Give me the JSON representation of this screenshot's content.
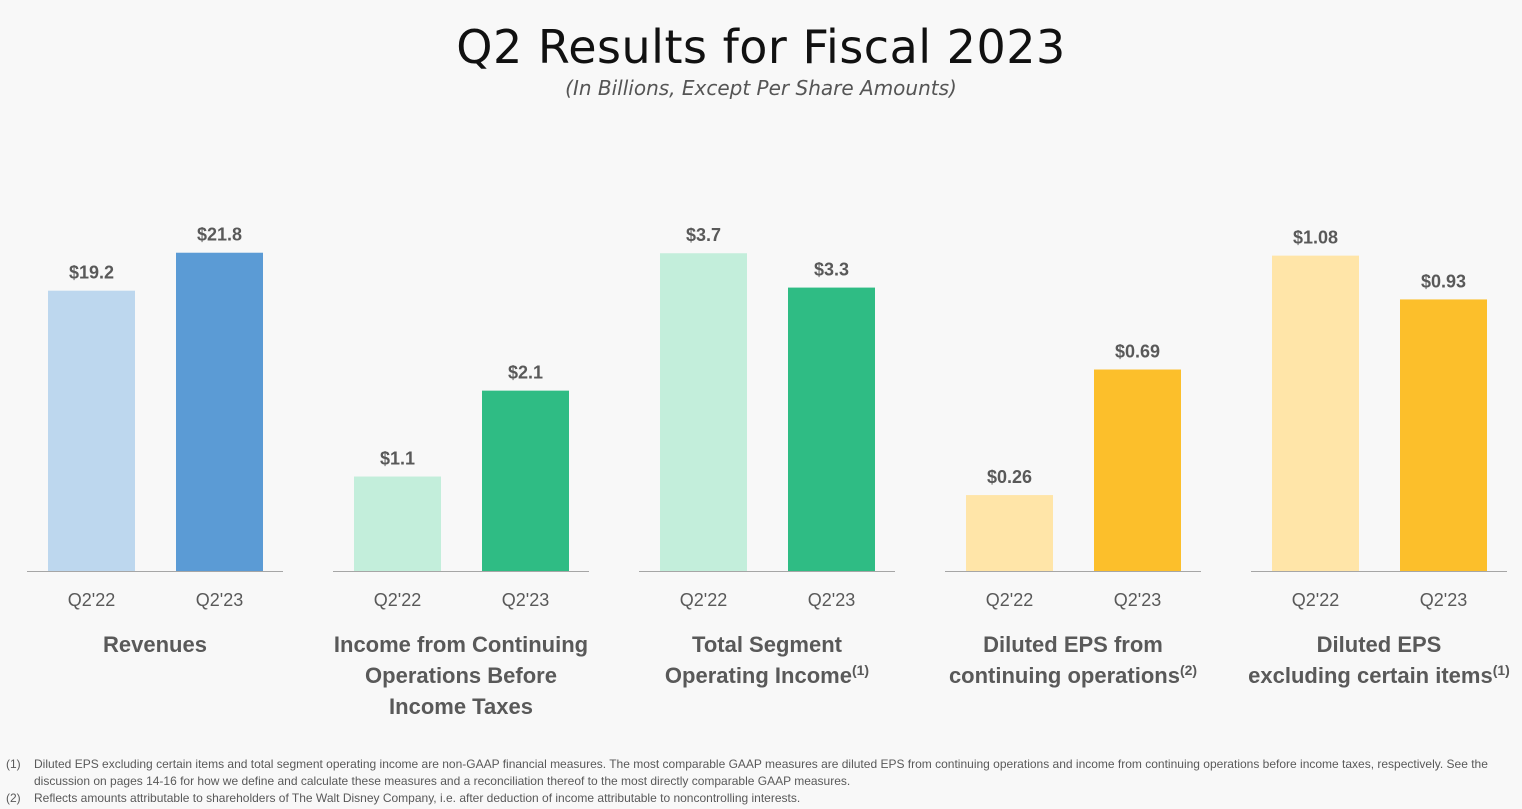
{
  "title": "Q2 Results for Fiscal 2023",
  "subtitle": "(In Billions, Except Per Share Amounts)",
  "colors": {
    "blue_light": "#bdd7ee",
    "blue": "#5b9bd5",
    "green_light": "#c3eedb",
    "green": "#2fbc84",
    "yellow_light": "#ffe5a8",
    "yellow": "#fcbf2b",
    "axis": "#a6a6a6",
    "label": "#595959"
  },
  "chart_data": [
    {
      "type": "bar",
      "title": "Revenues",
      "title_sup": "",
      "categories": [
        "Q2'22",
        "Q2'23"
      ],
      "values": [
        19.2,
        21.8
      ],
      "value_labels": [
        "$19.2",
        "$21.8"
      ],
      "colors": [
        "#bdd7ee",
        "#5b9bd5"
      ],
      "ylim": [
        0,
        25
      ]
    },
    {
      "type": "bar",
      "title": "Income from Continuing Operations Before Income Taxes",
      "title_sup": "",
      "categories": [
        "Q2'22",
        "Q2'23"
      ],
      "values": [
        1.1,
        2.1
      ],
      "value_labels": [
        "$1.1",
        "$2.1"
      ],
      "colors": [
        "#c3eedb",
        "#2fbc84"
      ],
      "ylim": [
        0,
        4.25
      ]
    },
    {
      "type": "bar",
      "title": "Total Segment Operating Income",
      "title_sup": "(1)",
      "categories": [
        "Q2'22",
        "Q2'23"
      ],
      "values": [
        3.7,
        3.3
      ],
      "value_labels": [
        "$3.7",
        "$3.3"
      ],
      "colors": [
        "#c3eedb",
        "#2fbc84"
      ],
      "ylim": [
        0,
        4.25
      ]
    },
    {
      "type": "bar",
      "title": "Diluted EPS from continuing operations",
      "title_sup": "(2)",
      "categories": [
        "Q2'22",
        "Q2'23"
      ],
      "values": [
        0.26,
        0.69
      ],
      "value_labels": [
        "$0.26",
        "$0.69"
      ],
      "colors": [
        "#ffe5a8",
        "#fcbf2b"
      ],
      "ylim": [
        0,
        1.25
      ]
    },
    {
      "type": "bar",
      "title": "Diluted EPS excluding certain items",
      "title_sup": "(1)",
      "categories": [
        "Q2'22",
        "Q2'23"
      ],
      "values": [
        1.08,
        0.93
      ],
      "value_labels": [
        "$1.08",
        "$0.93"
      ],
      "colors": [
        "#ffe5a8",
        "#fcbf2b"
      ],
      "ylim": [
        0,
        1.25
      ]
    }
  ],
  "footnotes": [
    {
      "num": "(1)",
      "text": "Diluted EPS excluding certain items and total segment operating income are non-GAAP financial measures. The most comparable GAAP measures are diluted EPS from continuing operations and income from continuing operations before income taxes, respectively. See the discussion on pages 14-16 for how we define and calculate these measures and a reconciliation thereof to the most directly comparable GAAP measures."
    },
    {
      "num": "(2)",
      "text": "Reflects amounts attributable to shareholders of The Walt Disney Company, i.e. after deduction of income attributable to noncontrolling interests."
    }
  ]
}
